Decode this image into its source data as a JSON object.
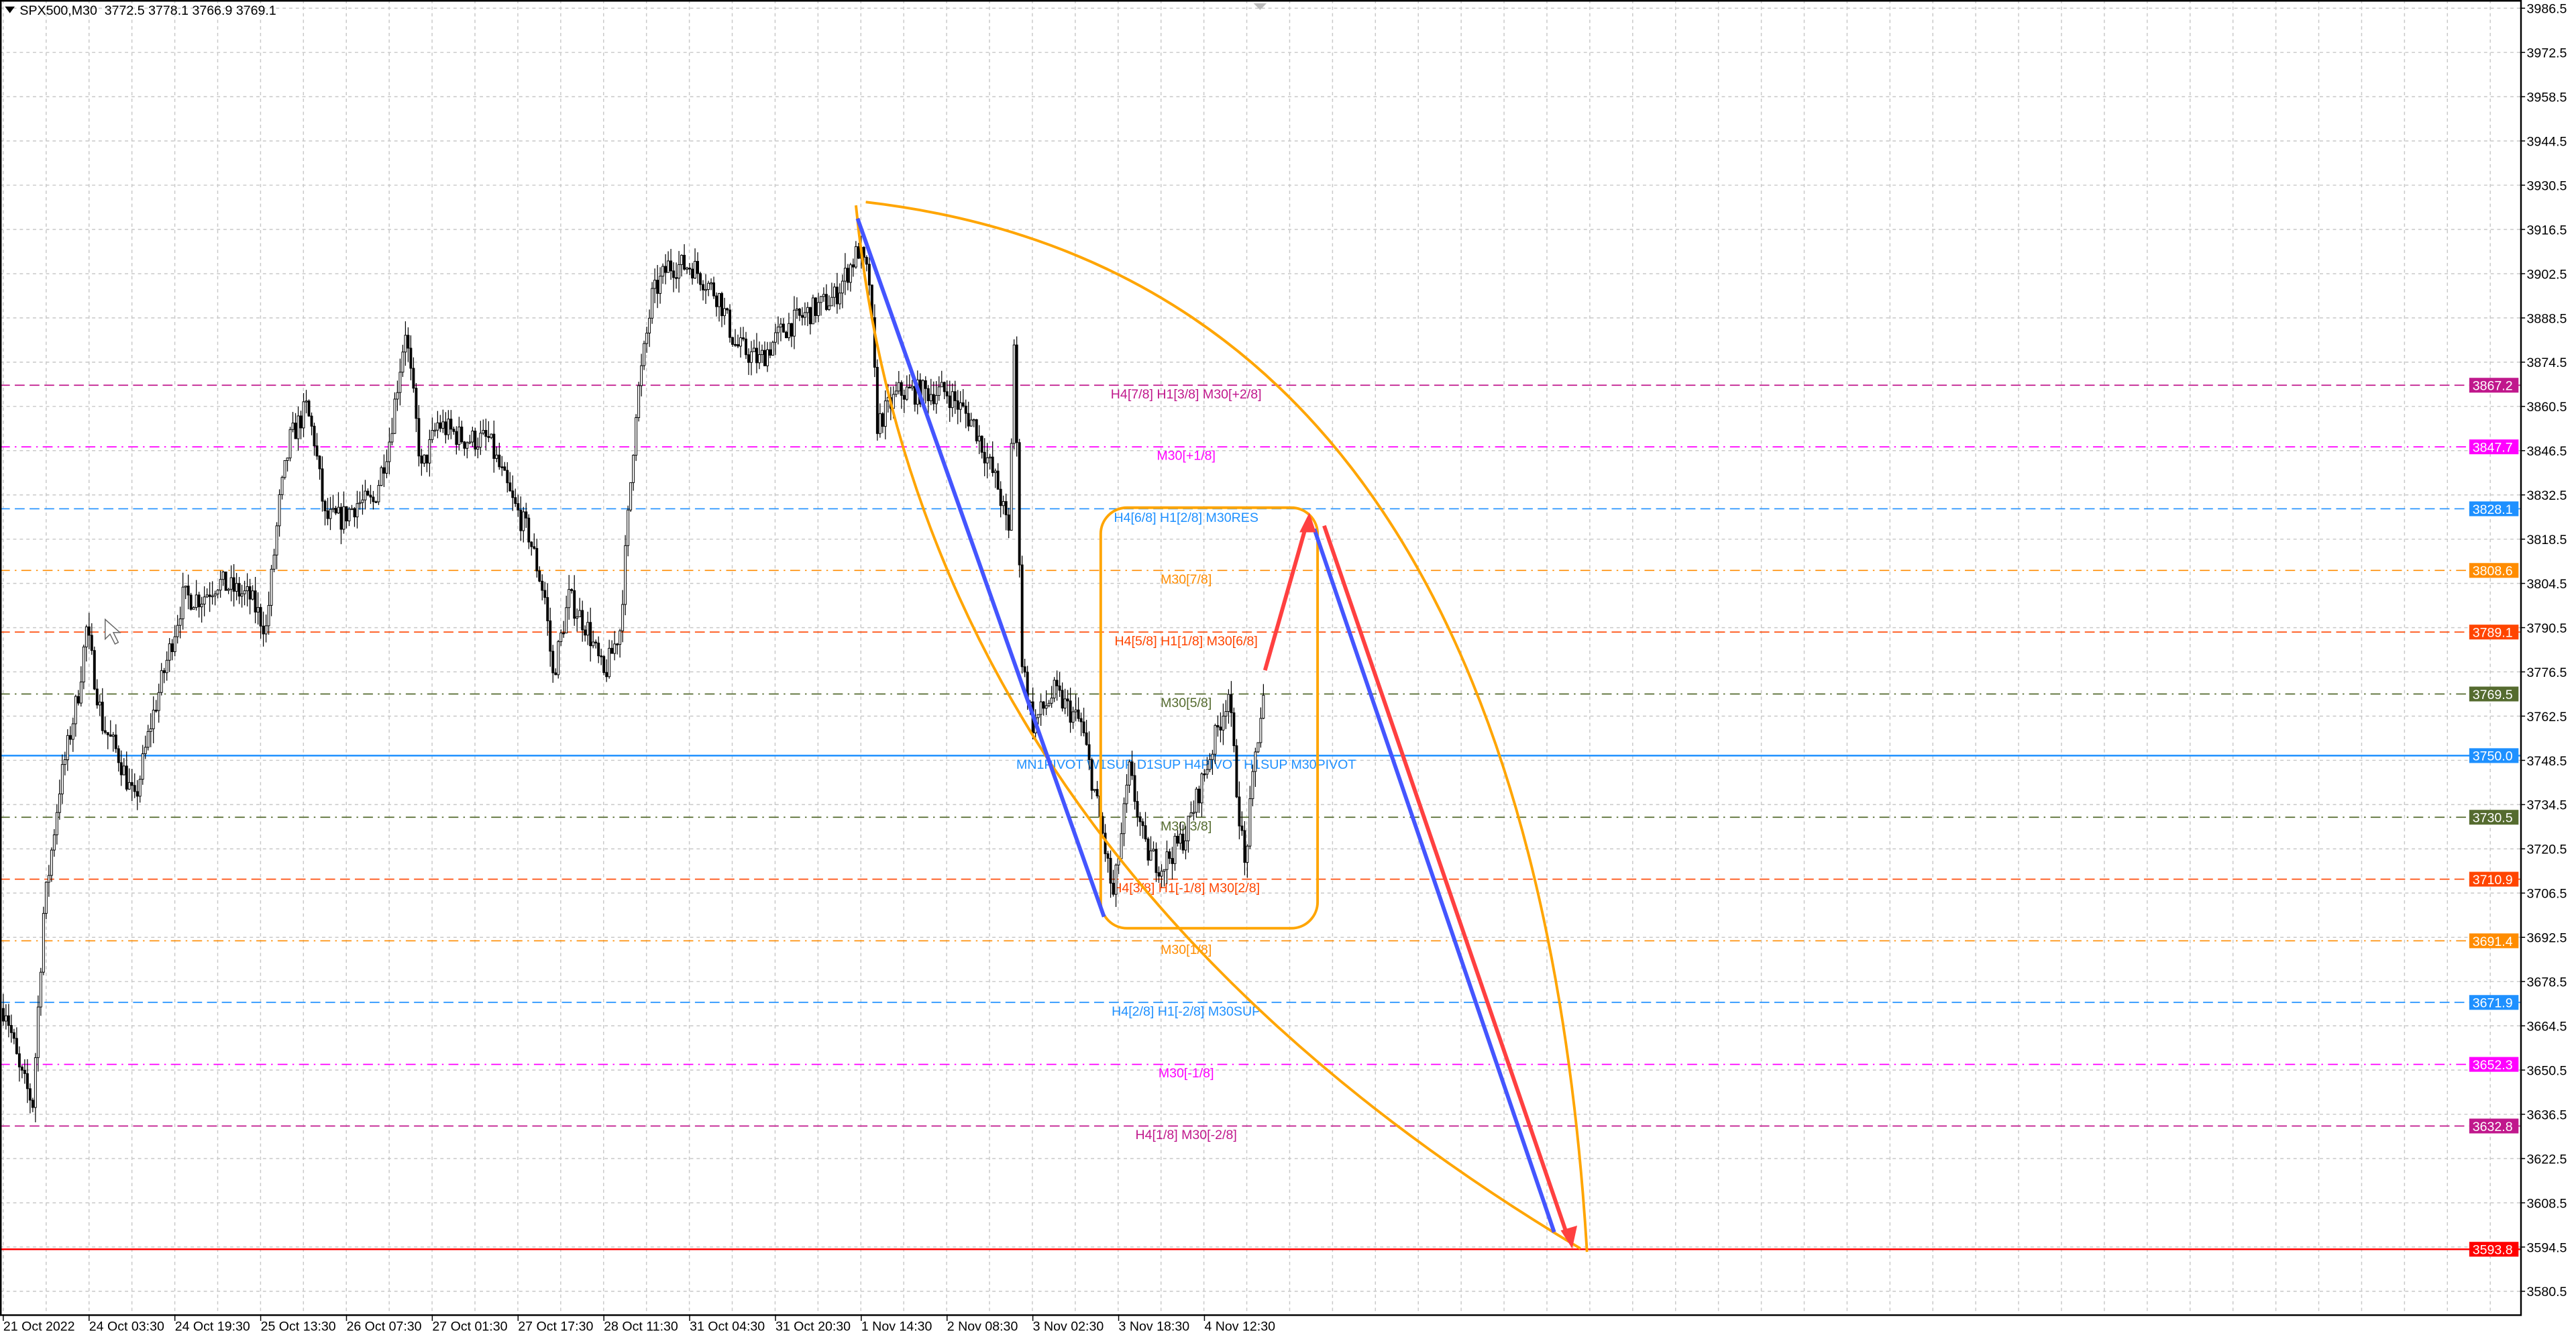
{
  "header": {
    "symbol": "SPX500,M30",
    "ohlc": "3772.5 3778.1 3766.9 3769.1",
    "menu_icon": "triangle-down-icon"
  },
  "chart_data": {
    "type": "candlestick",
    "symbol": "SPX500",
    "timeframe": "M30",
    "ylim": [
      3573.5,
      3988
    ],
    "yticks": [
      "3986.5",
      "3972.5",
      "3958.5",
      "3944.5",
      "3930.5",
      "3916.5",
      "3902.5",
      "3888.5",
      "3874.5",
      "3860.5",
      "3846.5",
      "3832.5",
      "3818.5",
      "3804.5",
      "3790.5",
      "3776.5",
      "3762.5",
      "3748.5",
      "3734.5",
      "3720.5",
      "3706.5",
      "3692.5",
      "3678.5",
      "3664.5",
      "3650.5",
      "3636.5",
      "3622.5",
      "3608.5",
      "3594.5",
      "3580.5"
    ],
    "xticks": [
      "21 Oct 2022",
      "24 Oct 03:30",
      "24 Oct 19:30",
      "25 Oct 13:30",
      "26 Oct 07:30",
      "27 Oct 01:30",
      "27 Oct 17:30",
      "28 Oct 11:30",
      "31 Oct 04:30",
      "31 Oct 20:30",
      "1 Nov 14:30",
      "2 Nov 08:30",
      "3 Nov 02:30",
      "3 Nov 18:30",
      "4 Nov 12:30"
    ],
    "bars_per_xtick": 32,
    "price_path": [
      [
        1,
        3670
      ],
      [
        6,
        3650
      ],
      [
        11,
        3640
      ],
      [
        15,
        3700
      ],
      [
        21,
        3740
      ],
      [
        28,
        3770
      ],
      [
        31,
        3790
      ],
      [
        37,
        3760
      ],
      [
        43,
        3750
      ],
      [
        49,
        3735
      ],
      [
        55,
        3760
      ],
      [
        61,
        3780
      ],
      [
        67,
        3800
      ],
      [
        74,
        3800
      ],
      [
        80,
        3805
      ],
      [
        92,
        3800
      ],
      [
        98,
        3790
      ],
      [
        103,
        3830
      ],
      [
        107,
        3850
      ],
      [
        113,
        3860
      ],
      [
        116,
        3850
      ],
      [
        120,
        3825
      ],
      [
        126,
        3825
      ],
      [
        132,
        3830
      ],
      [
        138,
        3830
      ],
      [
        144,
        3850
      ],
      [
        150,
        3885
      ],
      [
        156,
        3840
      ],
      [
        162,
        3855
      ],
      [
        172,
        3850
      ],
      [
        181,
        3850
      ],
      [
        190,
        3830
      ],
      [
        196,
        3820
      ],
      [
        202,
        3800
      ],
      [
        205,
        3775
      ],
      [
        211,
        3800
      ],
      [
        218,
        3790
      ],
      [
        224,
        3775
      ],
      [
        230,
        3790
      ],
      [
        236,
        3860
      ],
      [
        242,
        3895
      ],
      [
        248,
        3905
      ],
      [
        257,
        3905
      ],
      [
        267,
        3895
      ],
      [
        273,
        3880
      ],
      [
        282,
        3875
      ],
      [
        291,
        3885
      ],
      [
        300,
        3890
      ],
      [
        310,
        3895
      ],
      [
        319,
        3910
      ],
      [
        323,
        3900
      ],
      [
        326,
        3855
      ],
      [
        334,
        3865
      ],
      [
        343,
        3865
      ],
      [
        352,
        3865
      ],
      [
        362,
        3855
      ],
      [
        371,
        3835
      ],
      [
        375,
        3820
      ],
      [
        377,
        3880
      ],
      [
        380,
        3780
      ],
      [
        384,
        3760
      ],
      [
        392,
        3770
      ],
      [
        402,
        3760
      ],
      [
        409,
        3730
      ],
      [
        414,
        3705
      ],
      [
        420,
        3745
      ],
      [
        426,
        3720
      ],
      [
        432,
        3715
      ],
      [
        441,
        3725
      ],
      [
        450,
        3750
      ],
      [
        457,
        3770
      ],
      [
        460,
        3740
      ],
      [
        463,
        3715
      ],
      [
        467,
        3750
      ],
      [
        470,
        3769
      ]
    ],
    "levels": [
      {
        "price": 3867.2,
        "tag": "3867.2",
        "label": "H4[7/8] H1[3/8] M30[+2/8]",
        "color": "#c0188c",
        "style": "dash"
      },
      {
        "price": 3847.7,
        "tag": "3847.7",
        "label": "M30[+1/8]",
        "color": "#ff00ff",
        "style": "dashdot"
      },
      {
        "price": 3828.1,
        "tag": "3828.1",
        "label": "H4[6/8] H1[2/8] M30RES",
        "color": "#1e90ff",
        "style": "dash"
      },
      {
        "price": 3808.6,
        "tag": "3808.6",
        "label": "M30[7/8]",
        "color": "#ff8c00",
        "style": "dashdot"
      },
      {
        "price": 3789.1,
        "tag": "3789.1",
        "label": "H4[5/8] H1[1/8] M30[6/8]",
        "color": "#ff4500",
        "style": "dash"
      },
      {
        "price": 3769.5,
        "tag": "3769.5",
        "label": "M30[5/8]",
        "color": "#556b2f",
        "style": "dashdot"
      },
      {
        "price": 3750.0,
        "tag": "3750.0",
        "label": "MN1PIVOT W1SUP D1SUP H4PIVOT H1SUP M30PIVOT",
        "color": "#1e90ff",
        "style": "solid"
      },
      {
        "price": 3730.5,
        "tag": "3730.5",
        "label": "M30[3/8]",
        "color": "#556b2f",
        "style": "dashdot"
      },
      {
        "price": 3710.9,
        "tag": "3710.9",
        "label": "H4[3/8] H1[-1/8] M30[2/8]",
        "color": "#ff4500",
        "style": "dash"
      },
      {
        "price": 3691.4,
        "tag": "3691.4",
        "label": "M30[1/8]",
        "color": "#ff8c00",
        "style": "dashdot"
      },
      {
        "price": 3671.9,
        "tag": "3671.9",
        "label": "H4[2/8] H1[-2/8] M30SUP",
        "color": "#1e90ff",
        "style": "dash"
      },
      {
        "price": 3652.3,
        "tag": "3652.3",
        "label": "M30[-1/8]",
        "color": "#ff00ff",
        "style": "dashdot"
      },
      {
        "price": 3632.8,
        "tag": "3632.8",
        "label": "H4[1/8] M30[-2/8]",
        "color": "#c0188c",
        "style": "dash"
      },
      {
        "price": 3593.8,
        "tag": "3593.8",
        "label": "",
        "color": "#ff0000",
        "style": "solid"
      }
    ],
    "grid": true,
    "drawing_colors": {
      "arc": "#ffa500",
      "trend_blue": "#4455ff",
      "trend_red": "#ff4040",
      "box": "#ffa500"
    }
  }
}
